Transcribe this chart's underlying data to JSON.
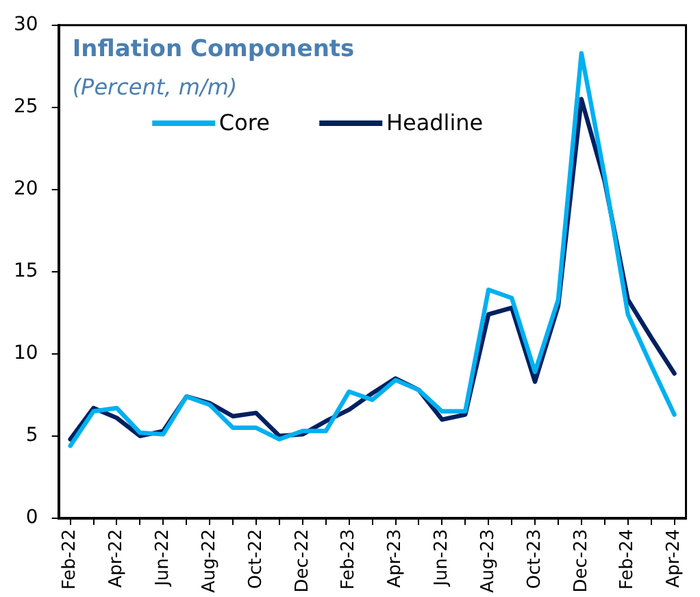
{
  "chart_data": {
    "type": "line",
    "title": "Inflation Components",
    "subtitle": "(Percent, m/m)",
    "categories": [
      "Feb-22",
      null,
      "Apr-22",
      null,
      "Jun-22",
      null,
      "Aug-22",
      null,
      "Oct-22",
      null,
      "Dec-22",
      null,
      "Feb-23",
      null,
      "Apr-23",
      null,
      "Jun-23",
      null,
      "Aug-23",
      null,
      "Oct-23",
      null,
      "Dec-23",
      null,
      "Feb-24",
      null,
      "Apr-24"
    ],
    "series": [
      {
        "name": "Core",
        "color": "#00b0f0",
        "values": [
          4.4,
          6.5,
          6.7,
          5.2,
          5.1,
          7.4,
          6.9,
          5.5,
          5.5,
          4.8,
          5.3,
          5.3,
          7.7,
          7.2,
          8.4,
          7.8,
          6.5,
          6.5,
          13.9,
          13.4,
          8.9,
          13.3,
          28.3,
          20.8,
          12.4,
          9.3,
          6.3
        ]
      },
      {
        "name": "Headline",
        "color": "#002060",
        "values": [
          4.8,
          6.7,
          6.1,
          5.0,
          5.3,
          7.4,
          7.0,
          6.2,
          6.4,
          5.0,
          5.1,
          5.9,
          6.6,
          7.6,
          8.5,
          7.8,
          6.0,
          6.3,
          12.4,
          12.8,
          8.3,
          12.9,
          25.5,
          20.5,
          13.3,
          11.0,
          8.8
        ]
      }
    ],
    "ylim": [
      0,
      30
    ],
    "yticks": [
      0,
      5,
      10,
      15,
      20,
      25,
      30
    ],
    "grid": false,
    "legend": "top",
    "marker": "none",
    "line_style": "solid"
  }
}
